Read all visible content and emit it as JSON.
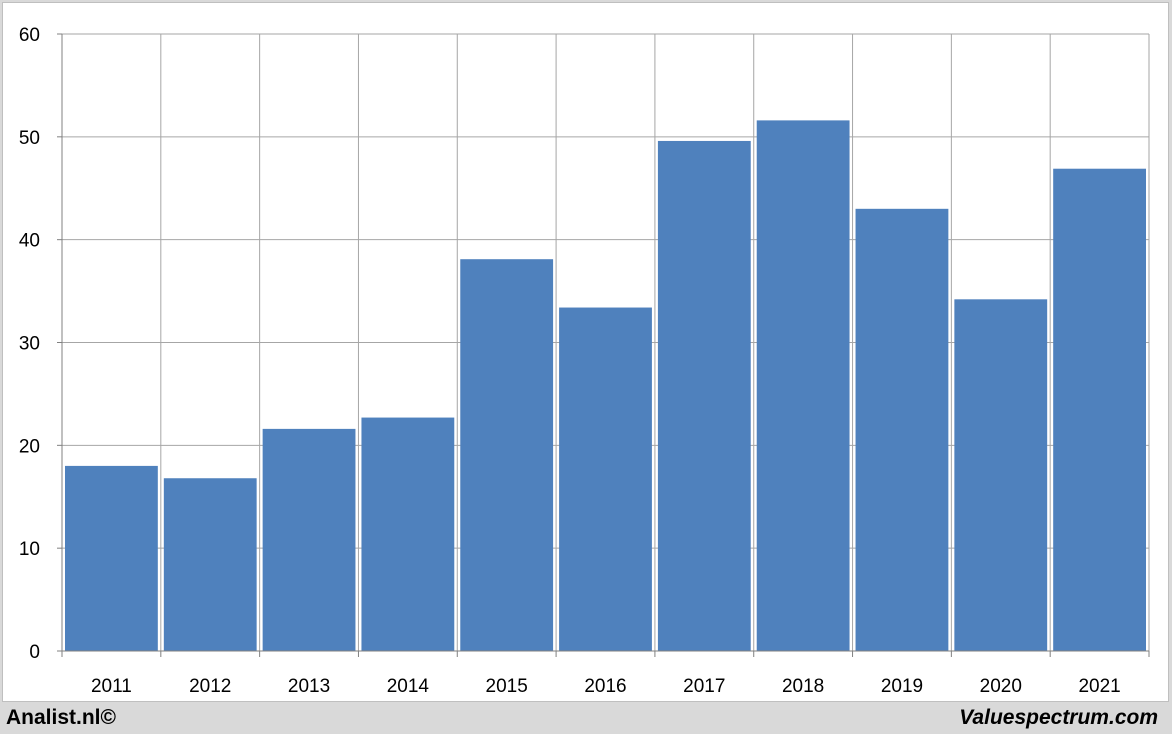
{
  "chart_data": {
    "type": "bar",
    "categories": [
      "2011",
      "2012",
      "2013",
      "2014",
      "2015",
      "2016",
      "2017",
      "2018",
      "2019",
      "2020",
      "2021"
    ],
    "values": [
      18.0,
      16.8,
      21.6,
      22.7,
      38.1,
      33.4,
      49.6,
      51.6,
      43.0,
      34.2,
      46.9
    ],
    "title": "",
    "xlabel": "",
    "ylabel": "",
    "ylim": [
      0,
      60
    ],
    "yticks": [
      "0",
      "10",
      "20",
      "30",
      "40",
      "50",
      "60"
    ],
    "grid": true,
    "bar_color": "#4f81bd"
  },
  "footer": {
    "left_text": "Analist.nl©",
    "right_text": "Valuespectrum.com"
  }
}
